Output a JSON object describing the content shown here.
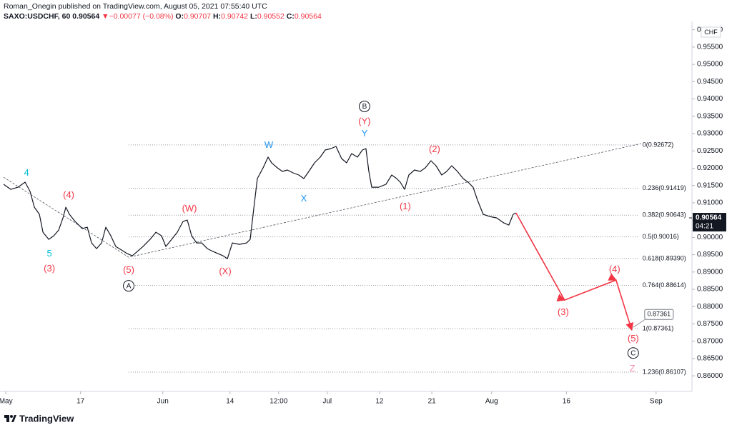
{
  "chart_data": {
    "type": "line",
    "title": "Roman_Onegin published on TradingView.com, August 05, 2021 07:55:40 UTC",
    "symbol": "SAXO:USDCHF, 60",
    "last": 0.90564,
    "change": "−0.00077 (−0.08%)",
    "ohlc": [
      {
        "key": "O:",
        "value": 0.90707
      },
      {
        "key": "H:",
        "value": 0.90742
      },
      {
        "key": "L:",
        "value": 0.90552
      },
      {
        "key": "C:",
        "value": 0.90564
      }
    ],
    "color": "#131722",
    "x": [
      -0.3,
      0.67,
      1.63,
      2.58,
      3.25,
      3.82,
      4.49,
      4.97,
      5.74,
      6.41,
      7.07,
      7.65,
      8.03,
      8.51,
      9.27,
      10.23,
      10.9,
      11.47,
      12.14,
      12.81,
      13.38,
      14.05,
      14.72,
      15.49,
      16.25,
      16.92,
      17.59,
      18.36,
      19.31,
      20.08,
      20.84,
      21.41,
      22.18,
      22.94,
      23.71,
      24.28,
      24.86,
      25.53,
      26.2,
      26.96,
      27.72,
      28.39,
      29.06,
      29.64,
      30.31,
      31.26,
      32.22,
      32.7,
      33.17,
      33.65,
      34.42,
      35.09,
      35.56,
      36.33,
      37.0,
      37.67,
      38.43,
      39.2,
      39.87,
      40.54,
      41.3,
      42.07,
      42.73,
      43.5,
      44.17,
      44.93,
      45.6,
      46.27,
      47.04,
      47.71,
      48.18,
      48.57,
      48.95,
      49.9,
      50.86,
      51.63,
      52.29,
      52.77,
      53.35,
      53.92,
      54.68,
      55.45,
      56.12,
      56.88,
      57.55,
      58.32,
      58.99,
      59.66,
      60.42,
      61.19,
      61.85,
      62.52,
      63.1,
      63.86,
      64.72,
      65.68,
      66.63,
      67.3,
      67.88,
      68.26
    ],
    "values": [
      0.91534,
      0.91389,
      0.91451,
      0.91596,
      0.91327,
      0.90873,
      0.90667,
      0.9015,
      0.89944,
      0.90047,
      0.90212,
      0.90563,
      0.90873,
      0.90667,
      0.9046,
      0.90254,
      0.90295,
      0.89841,
      0.89675,
      0.89841,
      0.90295,
      0.90047,
      0.89737,
      0.89634,
      0.89531,
      0.89469,
      0.89593,
      0.89737,
      0.89944,
      0.9015,
      0.90047,
      0.89737,
      0.89944,
      0.9015,
      0.9046,
      0.90501,
      0.90047,
      0.89841,
      0.89841,
      0.89675,
      0.89593,
      0.89531,
      0.89469,
      0.89386,
      0.89841,
      0.89799,
      0.89841,
      0.89944,
      0.90832,
      0.91699,
      0.92009,
      0.92319,
      0.92153,
      0.92009,
      0.91906,
      0.91947,
      0.91864,
      0.91802,
      0.91699,
      0.91906,
      0.92153,
      0.92319,
      0.92525,
      0.92566,
      0.92628,
      0.92277,
      0.92153,
      0.92422,
      0.92319,
      0.92525,
      0.92566,
      0.91906,
      0.91451,
      0.91451,
      0.91534,
      0.91802,
      0.91699,
      0.91596,
      0.91389,
      0.91802,
      0.91947,
      0.91906,
      0.92009,
      0.92215,
      0.92071,
      0.91802,
      0.91906,
      0.92071,
      0.91906,
      0.91699,
      0.91596,
      0.91451,
      0.9108,
      0.90667,
      0.90605,
      0.90563,
      0.90419,
      0.90357,
      0.90667,
      0.90708
    ],
    "xlim": [
      -0.3,
      91.8
    ],
    "ylim": [
      0.8555,
      0.9624
    ],
    "xticks": [
      {
        "value": 0,
        "label": "May"
      },
      {
        "value": 10,
        "label": "17"
      },
      {
        "value": 21,
        "label": "Jun"
      },
      {
        "value": 30,
        "label": "14"
      },
      {
        "value": 36.5,
        "label": "12:00"
      },
      {
        "value": 43,
        "label": "Jul"
      },
      {
        "value": 50,
        "label": "12"
      },
      {
        "value": 57,
        "label": "21"
      },
      {
        "value": 65,
        "label": "Aug"
      },
      {
        "value": 75,
        "label": "16"
      },
      {
        "value": 87,
        "label": "Sep"
      }
    ],
    "yticks": [
      {
        "value": 0.86,
        "label": "0.86000"
      },
      {
        "value": 0.865,
        "label": "0.86500"
      },
      {
        "value": 0.87,
        "label": "0.87000"
      },
      {
        "value": 0.875,
        "label": "0.87500"
      },
      {
        "value": 0.88,
        "label": "0.88000"
      },
      {
        "value": 0.885,
        "label": "0.88500"
      },
      {
        "value": 0.89,
        "label": "0.89000"
      },
      {
        "value": 0.895,
        "label": "0.89500"
      },
      {
        "value": 0.9,
        "label": "0.90000"
      },
      {
        "value": 0.905,
        "label": "0.90500"
      },
      {
        "value": 0.91,
        "label": "0.91000"
      },
      {
        "value": 0.915,
        "label": "0.91500"
      },
      {
        "value": 0.92,
        "label": "0.92000"
      },
      {
        "value": 0.925,
        "label": "0.92500"
      },
      {
        "value": 0.93,
        "label": "0.93000"
      },
      {
        "value": 0.935,
        "label": "0.93500"
      },
      {
        "value": 0.94,
        "label": "0.94000"
      },
      {
        "value": 0.945,
        "label": "0.94500"
      },
      {
        "value": 0.95,
        "label": "0.95000"
      },
      {
        "value": 0.955,
        "label": "0.95500"
      },
      {
        "value": 0.96,
        "label": "0.96000"
      }
    ],
    "currency": "CHF",
    "price_label": {
      "value": 0.90564,
      "countdown": "04:21"
    },
    "fib": {
      "color": "#9598a1",
      "start": 16.44,
      "end": 84.6,
      "levels": [
        {
          "value": 0.92672,
          "label": "0(0.92672)"
        },
        {
          "value": 0.91419,
          "label": "0.236(0.91419)"
        },
        {
          "value": 0.90643,
          "label": "0.382(0.90643)"
        },
        {
          "value": 0.90016,
          "label": "0.5(0.90016)"
        },
        {
          "value": 0.8939,
          "label": "0.618(0.89390)"
        },
        {
          "value": 0.88614,
          "label": "0.764(0.88614)"
        },
        {
          "value": 0.87361,
          "label": "1(0.87361)"
        },
        {
          "value": 0.86107,
          "label": "1.236(0.86107)"
        }
      ]
    },
    "trendline": {
      "color": "#50535e",
      "x": [
        -0.3,
        16.44,
        85.0
      ],
      "values": [
        0.9174,
        0.89428,
        0.92711
      ]
    },
    "projection": {
      "color": "#f23645",
      "x": [
        68.26,
        74.76,
        81.64,
        83.75
      ],
      "values": [
        0.90708,
        0.88189,
        0.88767,
        0.87321
      ]
    },
    "callout": {
      "value": 0.87361,
      "label": "0.87361"
    },
    "wave_labels": [
      {
        "text": "4",
        "x": 2.77,
        "y": 0.91864,
        "color": "#00bcd4"
      },
      {
        "text": "5",
        "x": 5.83,
        "y": 0.89531,
        "color": "#00bcd4"
      },
      {
        "text": "(3)",
        "x": 5.83,
        "y": 0.89097,
        "color": "#f23645"
      },
      {
        "text": "(4)",
        "x": 8.41,
        "y": 0.91224,
        "color": "#f23645"
      },
      {
        "text": "(5)",
        "x": 16.44,
        "y": 0.89056,
        "color": "#f23645"
      },
      {
        "text": "A",
        "x": 16.44,
        "y": 0.88601,
        "color": "#131722",
        "circled": true
      },
      {
        "text": "(W)",
        "x": 24.57,
        "y": 0.90832,
        "color": "#f23645"
      },
      {
        "text": "(X)",
        "x": 29.35,
        "y": 0.89014,
        "color": "#f23645"
      },
      {
        "text": "W",
        "x": 35.18,
        "y": 0.9267,
        "color": "#2196f3"
      },
      {
        "text": "X",
        "x": 39.87,
        "y": 0.91121,
        "color": "#2196f3"
      },
      {
        "text": "Y",
        "x": 47.99,
        "y": 0.93,
        "color": "#2196f3"
      },
      {
        "text": "(Y)",
        "x": 47.99,
        "y": 0.93351,
        "color": "#f23645"
      },
      {
        "text": "B",
        "x": 47.99,
        "y": 0.93785,
        "color": "#131722",
        "circled": true
      },
      {
        "text": "(2)",
        "x": 57.36,
        "y": 0.92546,
        "color": "#f23645"
      },
      {
        "text": "(1)",
        "x": 53.44,
        "y": 0.90894,
        "color": "#f23645"
      },
      {
        "text": "(3)",
        "x": 74.57,
        "y": 0.87838,
        "color": "#f23645"
      },
      {
        "text": "(4)",
        "x": 81.45,
        "y": 0.89077,
        "color": "#f23645"
      },
      {
        "text": "(5)",
        "x": 83.94,
        "y": 0.87074,
        "color": "#f23645"
      },
      {
        "text": "C",
        "x": 83.94,
        "y": 0.8666,
        "color": "#131722",
        "circled": true
      },
      {
        "text": "Z",
        "x": 83.84,
        "y": 0.86206,
        "color": "#f48fb1"
      }
    ],
    "brand": "TradingView"
  }
}
